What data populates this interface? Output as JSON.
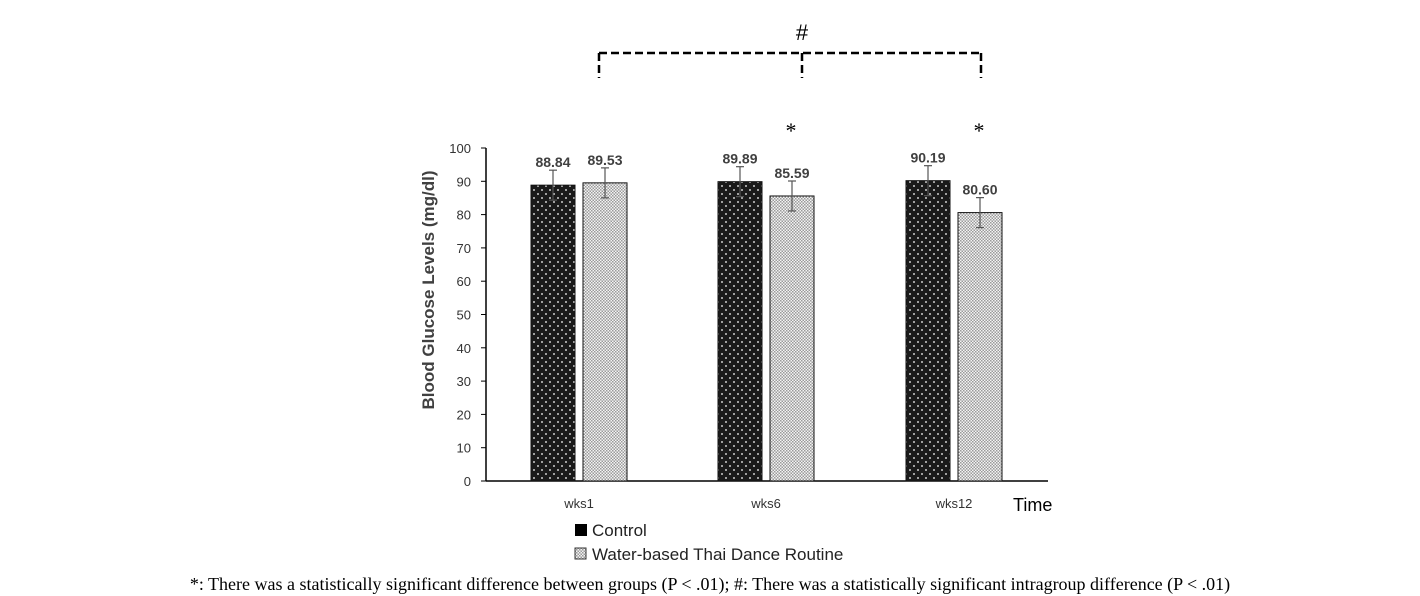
{
  "chart_data": {
    "type": "bar",
    "categories": [
      "wks1",
      "wks6",
      "wks12"
    ],
    "series": [
      {
        "name": "Control",
        "values": [
          88.84,
          89.89,
          90.19
        ],
        "error": [
          4.5,
          4.5,
          4.5
        ]
      },
      {
        "name": "Water-based Thai Dance Routine",
        "values": [
          89.53,
          85.59,
          80.6
        ],
        "error": [
          4.5,
          4.5,
          4.5
        ]
      }
    ],
    "data_labels": [
      [
        "88.84",
        "89.53"
      ],
      [
        "89.89",
        "85.59"
      ],
      [
        "90.19",
        "80.60"
      ]
    ],
    "ylabel": "Blood Glucose Levels (mg/dl)",
    "xlabel": "Time",
    "ylim": [
      0,
      100
    ],
    "yticks": [
      0,
      10,
      20,
      30,
      40,
      50,
      60,
      70,
      80,
      90,
      100
    ],
    "grid": false,
    "legend_position": "bottom-left",
    "significance": {
      "between_groups_marker": "*",
      "between_groups_categories": [
        "wks6",
        "wks12"
      ],
      "intragroup_marker": "#",
      "intragroup_span": [
        "wks1",
        "wks12"
      ]
    },
    "footnote": "*: There was a statistically significant difference between groups (P < .01); #: There was a statistically significant intragroup difference (P < .01)"
  },
  "colors": {
    "control_fill": "#1a1a1a",
    "dance_fill": "#e6e6e6",
    "axis": "#000000"
  }
}
